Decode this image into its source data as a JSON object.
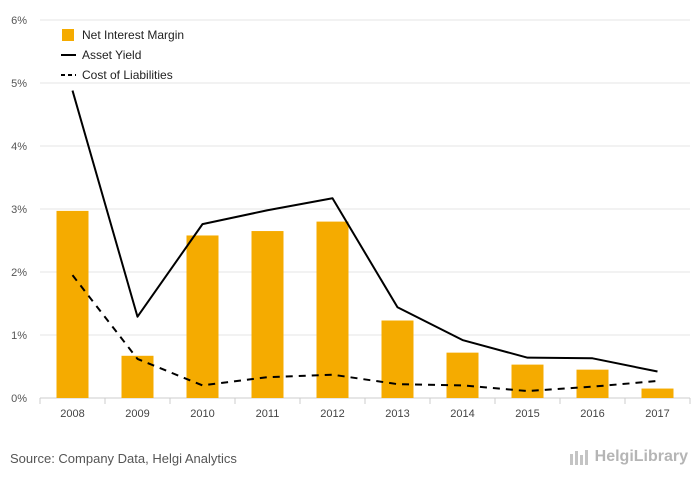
{
  "chart_data": {
    "type": "bar",
    "categories": [
      "2008",
      "2009",
      "2010",
      "2011",
      "2012",
      "2013",
      "2014",
      "2015",
      "2016",
      "2017"
    ],
    "series": [
      {
        "name": "Net Interest Margin",
        "kind": "bar",
        "color": "#f5ab00",
        "values": [
          2.97,
          0.67,
          2.58,
          2.65,
          2.8,
          1.23,
          0.72,
          0.53,
          0.45,
          0.15
        ]
      },
      {
        "name": "Asset Yield",
        "kind": "line",
        "color": "#000000",
        "values": [
          4.88,
          1.29,
          2.76,
          2.98,
          3.17,
          1.44,
          0.92,
          0.64,
          0.63,
          0.42
        ]
      },
      {
        "name": "Cost of Liabilities",
        "kind": "dashed-line",
        "color": "#000000",
        "values": [
          1.95,
          0.62,
          0.2,
          0.33,
          0.37,
          0.22,
          0.2,
          0.11,
          0.18,
          0.27
        ]
      }
    ],
    "ylim": [
      0,
      6
    ],
    "yticks": [
      "0%",
      "1%",
      "2%",
      "3%",
      "4%",
      "5%",
      "6%"
    ],
    "grid": true,
    "legend_position": "top-left"
  },
  "footer": {
    "source": "Source: Company Data, Helgi Analytics",
    "logo_text": "HelgiLibrary"
  }
}
